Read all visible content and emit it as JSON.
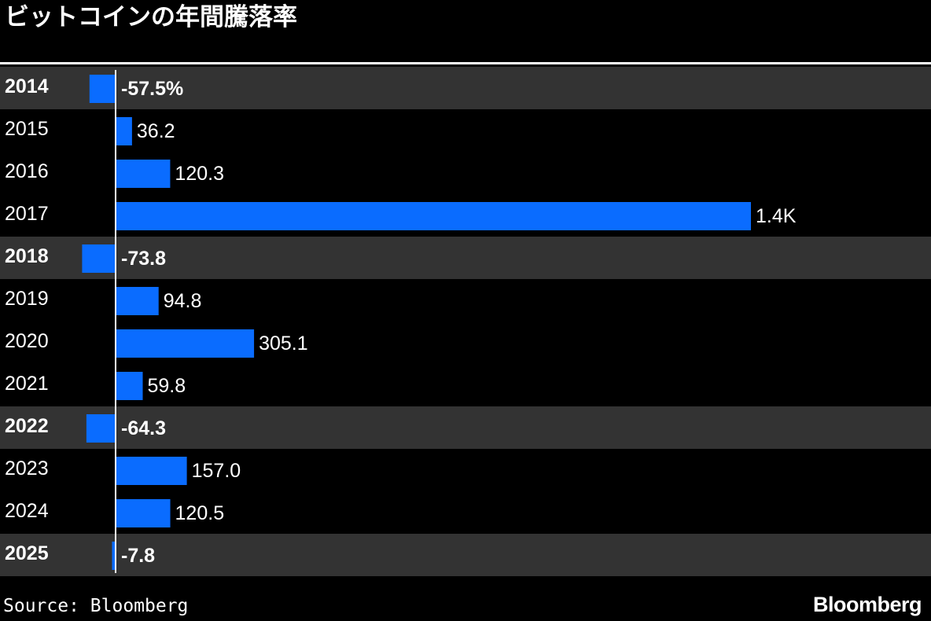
{
  "header": {
    "title": "ビットコインの年間騰落率"
  },
  "footer": {
    "source": "Source: Bloomberg",
    "logo": "Bloomberg"
  },
  "colors": {
    "bar": "#0a6cff",
    "negative_row_bg": "#333333",
    "background": "#000000",
    "text": "#ffffff"
  },
  "chart_data": {
    "type": "bar",
    "orientation": "horizontal",
    "title": "ビットコインの年間騰落率",
    "categories": [
      "2014",
      "2015",
      "2016",
      "2017",
      "2018",
      "2019",
      "2020",
      "2021",
      "2022",
      "2023",
      "2024",
      "2025"
    ],
    "values": [
      -57.5,
      36.2,
      120.3,
      1400,
      -73.8,
      94.8,
      305.1,
      59.8,
      -64.3,
      157.0,
      120.5,
      -7.8
    ],
    "labels": [
      "-57.5%",
      "36.2",
      "120.3",
      "1.4K",
      "-73.8",
      "94.8",
      "305.1",
      "59.8",
      "-64.3",
      "157.0",
      "120.5",
      "-7.8"
    ],
    "unit": "%",
    "grid": false,
    "legend": "none"
  }
}
